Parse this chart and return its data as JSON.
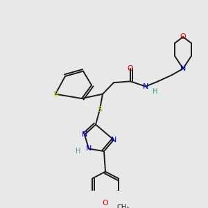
{
  "background_color": "#e8e8e8",
  "figsize": [
    3.0,
    3.0
  ],
  "dpi": 100,
  "bond_color": "#1a1a1a",
  "atom_colors": {
    "S": "#cccc00",
    "N": "#0000cc",
    "O": "#cc0000",
    "C": "#1a1a1a",
    "H": "#4a9999"
  },
  "lw": 1.4
}
